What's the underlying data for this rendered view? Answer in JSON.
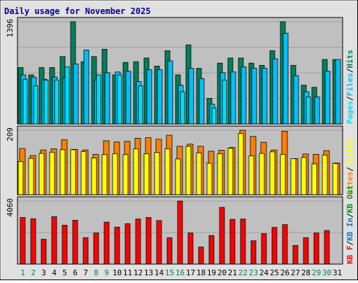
{
  "title": "Daily usage for November 2025",
  "colors": {
    "background": "#e0e0e0",
    "plot_bg": "#c0c0c0",
    "grid": "#a0a0a0",
    "title": "#0000a0",
    "hits": "#00805c",
    "files": "#00c0ff",
    "pages": "#00e0ff",
    "visits": "#ffff00",
    "sites": "#ff8000",
    "kbytes_in": "#0080c0",
    "kbytes_out": "#00a000",
    "kbytes_f": "#ff0000",
    "weekend_day": "#00805c",
    "weekday_day": "#000000"
  },
  "chart_data": [
    {
      "type": "bar",
      "name": "hits-files-pages",
      "ymax_label": "1396",
      "ymax": 1396,
      "legend": [
        "Pages",
        "Files",
        "Hits"
      ],
      "categories": [
        "1",
        "2",
        "3",
        "4",
        "5",
        "6",
        "7",
        "8",
        "9",
        "10",
        "11",
        "12",
        "13",
        "14",
        "15",
        "16",
        "17",
        "18",
        "19",
        "20",
        "21",
        "22",
        "23",
        "24",
        "25",
        "26",
        "27",
        "28",
        "29",
        "30",
        "31"
      ],
      "series": [
        {
          "name": "Hits",
          "values": [
            770,
            670,
            770,
            770,
            920,
            1396,
            850,
            920,
            1020,
            670,
            840,
            850,
            900,
            790,
            1000,
            670,
            1080,
            760,
            350,
            830,
            900,
            900,
            830,
            800,
            1000,
            1396,
            800,
            530,
            500,
            880,
            880
          ]
        },
        {
          "name": "Files",
          "values": [
            670,
            640,
            610,
            640,
            630,
            820,
            1010,
            600,
            700,
            710,
            720,
            580,
            740,
            740,
            860,
            530,
            760,
            620,
            270,
            700,
            710,
            780,
            760,
            760,
            890,
            1240,
            660,
            440,
            370,
            720,
            880
          ]
        },
        {
          "name": "Pages",
          "values": [
            610,
            520,
            600,
            600,
            780,
            0,
            0,
            670,
            0,
            670,
            0,
            520,
            0,
            0,
            0,
            440,
            0,
            0,
            220,
            600,
            0,
            0,
            0,
            0,
            0,
            0,
            0,
            370,
            0,
            0,
            0
          ]
        }
      ]
    },
    {
      "type": "bar",
      "name": "visits-sites",
      "ymax_label": "209",
      "ymax": 209,
      "legend": [
        "Sites",
        "Visits"
      ],
      "categories": [
        "1",
        "2",
        "3",
        "4",
        "5",
        "6",
        "7",
        "8",
        "9",
        "10",
        "11",
        "12",
        "13",
        "14",
        "15",
        "16",
        "17",
        "18",
        "19",
        "20",
        "21",
        "22",
        "23",
        "24",
        "25",
        "26",
        "27",
        "28",
        "29",
        "30",
        "31"
      ],
      "series": [
        {
          "name": "Sites",
          "values": [
            150,
            127,
            145,
            149,
            178,
            147,
            145,
            131,
            175,
            171,
            173,
            183,
            185,
            180,
            193,
            157,
            164,
            157,
            141,
            144,
            153,
            209,
            189,
            170,
            145,
            206,
            117,
            132,
            131,
            143,
            102
          ]
        },
        {
          "name": "Visits",
          "values": [
            108,
            118,
            134,
            138,
            146,
            146,
            140,
            119,
            130,
            133,
            130,
            149,
            133,
            137,
            149,
            116,
            157,
            136,
            102,
            133,
            151,
            199,
            126,
            134,
            139,
            131,
            117,
            121,
            100,
            129,
            101
          ]
        }
      ]
    },
    {
      "type": "bar",
      "name": "kbytes",
      "ymax_label": "4060",
      "ymax": 4060,
      "legend": [
        "KB F",
        "KB In",
        "KB Out"
      ],
      "categories": [
        "1",
        "2",
        "3",
        "4",
        "5",
        "6",
        "7",
        "8",
        "9",
        "10",
        "11",
        "12",
        "13",
        "14",
        "15",
        "16",
        "17",
        "18",
        "19",
        "20",
        "21",
        "22",
        "23",
        "24",
        "25",
        "26",
        "27",
        "28",
        "29",
        "30",
        "31"
      ],
      "series": [
        {
          "name": "KB F",
          "values": [
            3000,
            2920,
            1600,
            3050,
            2500,
            2820,
            1700,
            2000,
            2700,
            2380,
            2600,
            2900,
            3000,
            2800,
            1700,
            4060,
            2000,
            1100,
            1840,
            3650,
            2880,
            2900,
            1500,
            1960,
            2360,
            2540,
            1200,
            1700,
            2000,
            2160,
            0
          ]
        }
      ]
    }
  ],
  "day_labels": [
    "1",
    "2",
    "3",
    "4",
    "5",
    "6",
    "7",
    "8",
    "9",
    "10",
    "11",
    "12",
    "13",
    "14",
    "15",
    "16",
    "17",
    "18",
    "19",
    "20",
    "21",
    "22",
    "23",
    "24",
    "25",
    "26",
    "27",
    "28",
    "29",
    "30",
    "31"
  ],
  "weekend_days": [
    1,
    2,
    8,
    9,
    15,
    16,
    22,
    23,
    29,
    30
  ]
}
